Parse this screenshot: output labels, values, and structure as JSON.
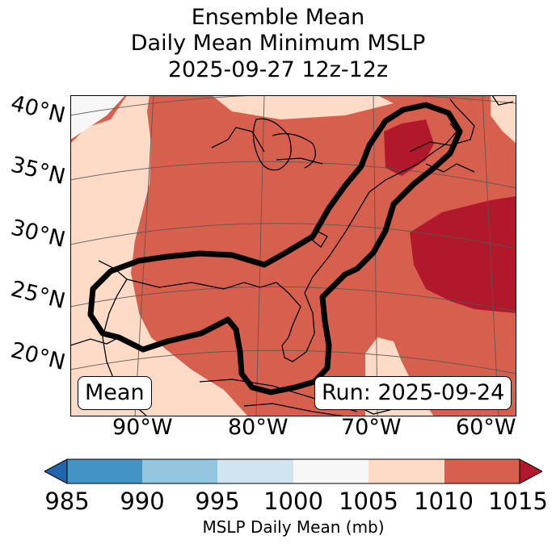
{
  "title": {
    "line1": "Ensemble Mean",
    "line2": "Daily Mean Minimum MSLP",
    "line3": "2025-09-27 12z-12z"
  },
  "lat_labels": [
    "40°N",
    "35°N",
    "30°N",
    "25°N",
    "20°N"
  ],
  "lon_labels": [
    "90°W",
    "80°W",
    "70°W",
    "60°W"
  ],
  "map": {
    "mean_label": "Mean",
    "run_label": "Run: 2025-09-24"
  },
  "colorbar": {
    "ticks": [
      "985",
      "990",
      "995",
      "1000",
      "1005",
      "1010",
      "1015"
    ],
    "label": "MSLP Daily Mean (mb)",
    "colors": {
      "below": "#2166ac",
      "985_990": "#4393c3",
      "990_995": "#92c5de",
      "995_1000": "#d1e5f0",
      "1000_1005": "#f7f7f7",
      "1005_1010": "#fddbc7",
      "1010_1015": "#d6604d",
      "above": "#b2182b"
    }
  }
}
